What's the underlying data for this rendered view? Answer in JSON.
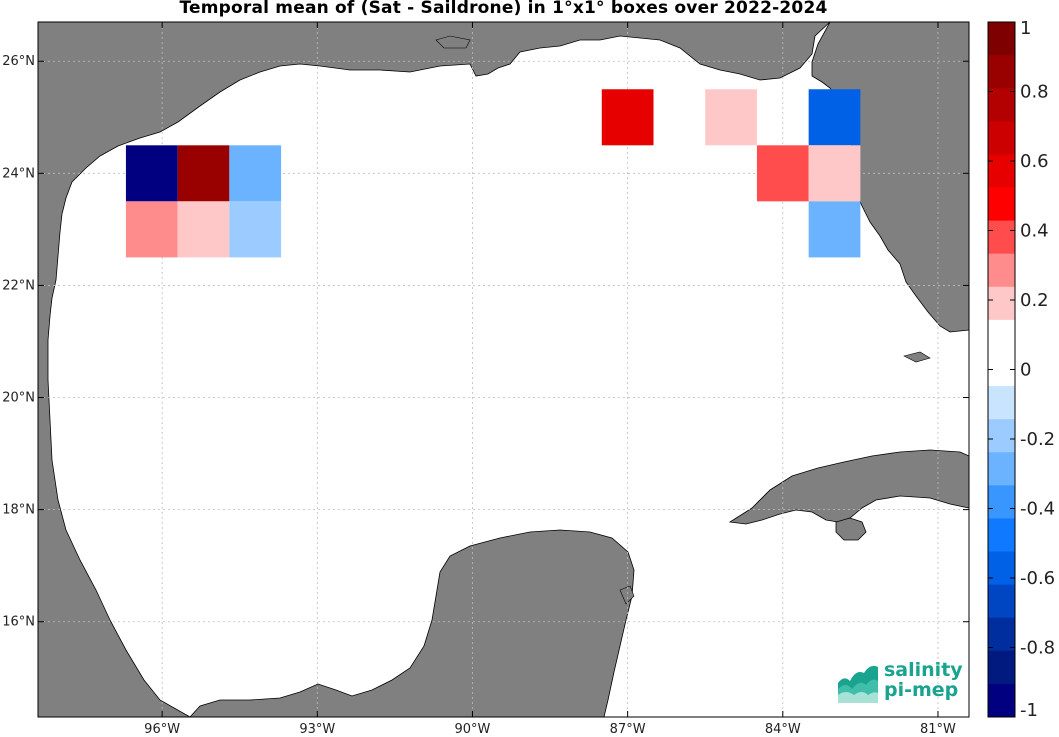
{
  "title": "Temporal mean of (Sat - Saildrone) in 1°x1° boxes over 2022-2024",
  "map": {
    "lon_range": [
      -98.4,
      -80.4
    ],
    "lat_range": [
      14.3,
      26.7
    ],
    "lon_ticks": [
      {
        "lon": -96,
        "label": "96°W"
      },
      {
        "lon": -93,
        "label": "93°W"
      },
      {
        "lon": -90,
        "label": "90°W"
      },
      {
        "lon": -87,
        "label": "87°W"
      },
      {
        "lon": -84,
        "label": "84°W"
      },
      {
        "lon": -81,
        "label": "81°W"
      }
    ],
    "lat_ticks": [
      {
        "lat": 26,
        "label": "26°N"
      },
      {
        "lat": 24,
        "label": "24°N"
      },
      {
        "lat": 22,
        "label": "22°N"
      },
      {
        "lat": 20,
        "label": "20°N"
      },
      {
        "lat": 18,
        "label": "18°N"
      },
      {
        "lat": 16,
        "label": "16°N"
      }
    ],
    "land_color": "#808080",
    "ocean_color": "#ffffff",
    "grid": "dotted",
    "boxes": [
      {
        "lon_min": -96.7,
        "lat_max": 24.5,
        "value": -1.0
      },
      {
        "lon_min": -95.7,
        "lat_max": 24.5,
        "value": 0.85
      },
      {
        "lon_min": -94.7,
        "lat_max": 24.5,
        "value": -0.25
      },
      {
        "lon_min": -96.7,
        "lat_max": 23.5,
        "value": 0.25
      },
      {
        "lon_min": -95.7,
        "lat_max": 23.5,
        "value": 0.15
      },
      {
        "lon_min": -94.7,
        "lat_max": 23.5,
        "value": -0.15
      },
      {
        "lon_min": -87.5,
        "lat_max": 25.5,
        "value": 0.55
      },
      {
        "lon_min": -85.5,
        "lat_max": 25.5,
        "value": 0.15
      },
      {
        "lon_min": -83.5,
        "lat_max": 25.5,
        "value": -0.55
      },
      {
        "lon_min": -84.5,
        "lat_max": 24.5,
        "value": 0.4
      },
      {
        "lon_min": -83.5,
        "lat_max": 24.5,
        "value": 0.15
      },
      {
        "lon_min": -83.5,
        "lat_max": 23.5,
        "value": -0.3
      }
    ]
  },
  "colorbar": {
    "min": -1,
    "max": 1,
    "tick_labels": [
      "1",
      "0.8",
      "0.6",
      "0.4",
      "0.2",
      "0",
      "-0.2",
      "-0.4",
      "-0.6",
      "-0.8",
      "-1"
    ],
    "colors_top_to_bottom": [
      "#7f0000",
      "#990000",
      "#b30000",
      "#cc0000",
      "#e60000",
      "#ff0000",
      "#ff4d4d",
      "#ff8c8c",
      "#ffc8c8",
      "#ffffff",
      "#ffffff",
      "#c8e4ff",
      "#9cccff",
      "#6cb3ff",
      "#3a96ff",
      "#0f7aff",
      "#0060e6",
      "#0045c2",
      "#002e9e",
      "#001a80",
      "#000080"
    ]
  },
  "logo": {
    "line1": "salinity",
    "line2": "pi-mep"
  }
}
